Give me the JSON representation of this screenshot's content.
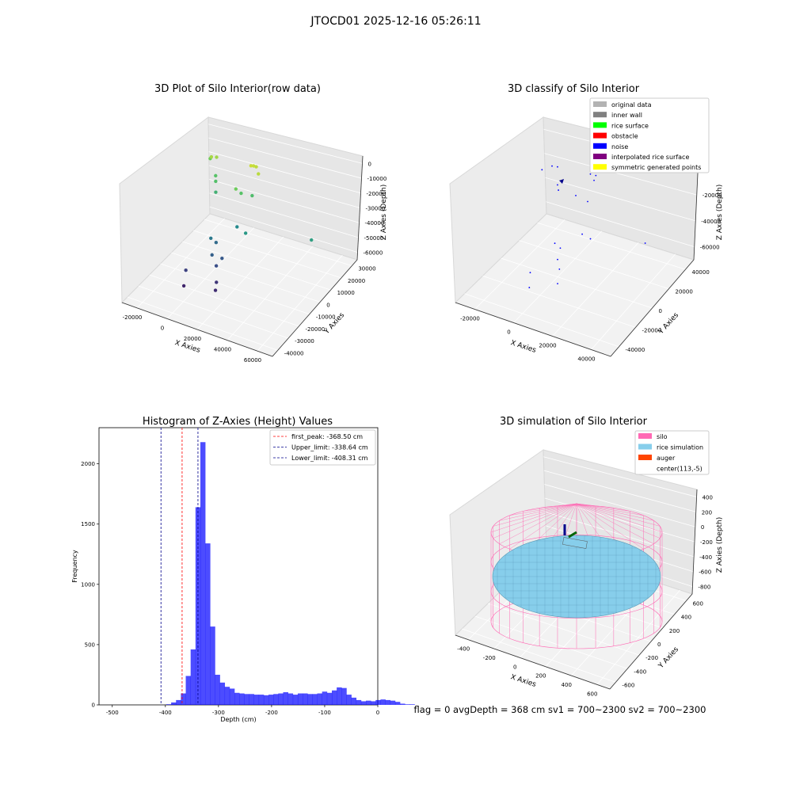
{
  "figure": {
    "suptitle": "JTOCD01 2025-12-16 05:26:11",
    "footer": "flag = 0     avgDepth = 368 cm  sv1 = 700~2300  sv2 = 700~2300"
  },
  "chart_data": [
    {
      "type": "scatter",
      "title": "3D Plot of Silo Interior(row data)",
      "xlabel": "X Axies",
      "ylabel": "Y Axies",
      "zlabel": "Z Axies (Depth)",
      "xticks": [
        "-20000",
        "0",
        "20000",
        "40000",
        "60000"
      ],
      "yticks": [
        "-40000",
        "-30000",
        "-20000",
        "-10000",
        "0",
        "10000",
        "20000",
        "30000"
      ],
      "zticks": [
        "0",
        "-10000",
        "-20000",
        "-30000",
        "-40000",
        "-50000",
        "-60000"
      ],
      "colormap": "viridis",
      "points": [
        {
          "x": -20000,
          "y": 25000,
          "z": -12000
        },
        {
          "x": -16000,
          "y": 20000,
          "z": -5000
        },
        {
          "x": -14000,
          "y": 22000,
          "z": -6000
        },
        {
          "x": -12000,
          "y": 18000,
          "z": -16000
        },
        {
          "x": -10000,
          "y": 15000,
          "z": -17000
        },
        {
          "x": -8000,
          "y": 12000,
          "z": -22000
        },
        {
          "x": -6000,
          "y": -20000,
          "z": -55000
        },
        {
          "x": -4000,
          "y": -25000,
          "z": -62000
        },
        {
          "x": 0,
          "y": -5000,
          "z": -40000
        },
        {
          "x": 2000,
          "y": -3000,
          "z": -44000
        },
        {
          "x": 4000,
          "y": -10000,
          "z": -47000
        },
        {
          "x": 8000,
          "y": -12000,
          "z": -52000
        },
        {
          "x": 9000,
          "y": -8000,
          "z": -49000
        },
        {
          "x": 12000,
          "y": -18000,
          "z": -58000
        },
        {
          "x": 14000,
          "y": -22000,
          "z": -60000
        },
        {
          "x": 10000,
          "y": 5000,
          "z": -35000
        },
        {
          "x": 6000,
          "y": 10000,
          "z": -12000
        },
        {
          "x": 8000,
          "y": 12000,
          "z": -16000
        },
        {
          "x": 13000,
          "y": 15000,
          "z": -18000
        },
        {
          "x": 15000,
          "y": 18000,
          "z": -3000
        },
        {
          "x": 9000,
          "y": 20000,
          "z": -1000
        },
        {
          "x": 10000,
          "y": 21000,
          "z": -1500
        },
        {
          "x": 11000,
          "y": 22000,
          "z": -2500
        },
        {
          "x": 20000,
          "y": -2000,
          "z": -30000
        },
        {
          "x": 55000,
          "y": 8000,
          "z": -28000
        }
      ]
    },
    {
      "type": "scatter",
      "title": "3D classify of Silo Interior",
      "xlabel": "X Axies",
      "ylabel": "Y Axies",
      "zlabel": "Z Axies (Depth)",
      "xticks": [
        "-20000",
        "0",
        "20000",
        "40000"
      ],
      "yticks": [
        "-40000",
        "-20000",
        "0",
        "20000",
        "40000"
      ],
      "zticks": [
        "0",
        "-20000",
        "-40000",
        "-60000"
      ],
      "legend": {
        "placement": "upper right",
        "entries": [
          {
            "label": "original data",
            "color": "#b3b3b3"
          },
          {
            "label": "inner wall",
            "color": "#808080"
          },
          {
            "label": "rice surface",
            "color": "#00ff00"
          },
          {
            "label": "obstacle",
            "color": "#ff0000"
          },
          {
            "label": "noise",
            "color": "#0000ff"
          },
          {
            "label": "interpolated rice surface",
            "color": "#800080"
          },
          {
            "label": "symmetric generated points",
            "color": "#ffff00"
          }
        ]
      },
      "series": [
        {
          "name": "noise",
          "color": "#0000ff",
          "points": [
            {
              "x": -20000,
              "y": 25000,
              "z": -15000
            },
            {
              "x": -12000,
              "y": 20000,
              "z": -5000
            },
            {
              "x": -10000,
              "y": 22000,
              "z": -6000
            },
            {
              "x": -8000,
              "y": 18000,
              "z": -16000
            },
            {
              "x": -6000,
              "y": 15000,
              "z": -17000
            },
            {
              "x": -4000,
              "y": -20000,
              "z": -55000
            },
            {
              "x": -2000,
              "y": -25000,
              "z": -62000
            },
            {
              "x": 2000,
              "y": -5000,
              "z": -40000
            },
            {
              "x": 4000,
              "y": -3000,
              "z": -44000
            },
            {
              "x": 6000,
              "y": -10000,
              "z": -47000
            },
            {
              "x": 8000,
              "y": -12000,
              "z": -52000
            },
            {
              "x": 10000,
              "y": -18000,
              "z": -58000
            },
            {
              "x": 12000,
              "y": 5000,
              "z": -35000
            },
            {
              "x": 6000,
              "y": 10000,
              "z": -12000
            },
            {
              "x": 10000,
              "y": 15000,
              "z": -18000
            },
            {
              "x": 12000,
              "y": 18000,
              "z": -3000
            },
            {
              "x": 9000,
              "y": 20000,
              "z": -1000
            },
            {
              "x": 11000,
              "y": 22000,
              "z": -2500
            },
            {
              "x": 20000,
              "y": -2000,
              "z": -30000
            },
            {
              "x": 45000,
              "y": 8000,
              "z": -28000
            }
          ]
        }
      ]
    },
    {
      "type": "bar",
      "title": "Histogram of Z-Axies (Height) Values",
      "xlabel": "Depth (cm)",
      "ylabel": "Frequency",
      "xlim": [
        -525,
        0
      ],
      "ylim": [
        0,
        2300
      ],
      "xticks": [
        -500,
        -400,
        -300,
        -200,
        -100,
        0
      ],
      "yticks": [
        0,
        500,
        1000,
        1500,
        2000
      ],
      "bar_color": "#0000ff",
      "bin_width": 9.17,
      "bin_start": -490,
      "values": [
        0,
        0,
        0,
        0,
        0,
        0,
        0,
        0,
        0,
        0,
        5,
        20,
        40,
        95,
        240,
        460,
        1640,
        2180,
        1340,
        650,
        250,
        185,
        150,
        135,
        100,
        95,
        90,
        90,
        85,
        85,
        80,
        85,
        90,
        95,
        105,
        95,
        85,
        95,
        95,
        90,
        90,
        95,
        110,
        100,
        120,
        145,
        140,
        85,
        60,
        40,
        30,
        35,
        30,
        40,
        45,
        40,
        35,
        25,
        10,
        5,
        5
      ],
      "lines": [
        {
          "label": "first_peak: -368.50 cm",
          "x": -368.5,
          "color": "#ff0000"
        },
        {
          "label": "Upper_limit: -338.64 cm",
          "x": -338.64,
          "color": "#00008b"
        },
        {
          "label": "Lower_limit: -408.31 cm",
          "x": -408.31,
          "color": "#00008b"
        }
      ],
      "legend_placement": "upper right"
    },
    {
      "type": "surface",
      "title": "3D simulation of Silo Interior",
      "xlabel": "X Axies",
      "ylabel": "Y Axies",
      "zlabel": "Z Axies (Depth)",
      "xticks": [
        "-400",
        "-200",
        "0",
        "200",
        "400",
        "600"
      ],
      "yticks": [
        "-600",
        "-400",
        "-200",
        "0",
        "200",
        "400",
        "600"
      ],
      "zticks": [
        "400",
        "200",
        "0",
        "-200",
        "-400",
        "-600",
        "-800"
      ],
      "legend": {
        "placement": "upper right",
        "entries": [
          {
            "label": "silo",
            "color": "#ff69b4"
          },
          {
            "label": "rice simulation",
            "color": "#87ceeb"
          },
          {
            "label": "auger",
            "color": "#ff4500"
          },
          {
            "label": "center(113,-5)",
            "color": ""
          }
        ]
      }
    }
  ]
}
